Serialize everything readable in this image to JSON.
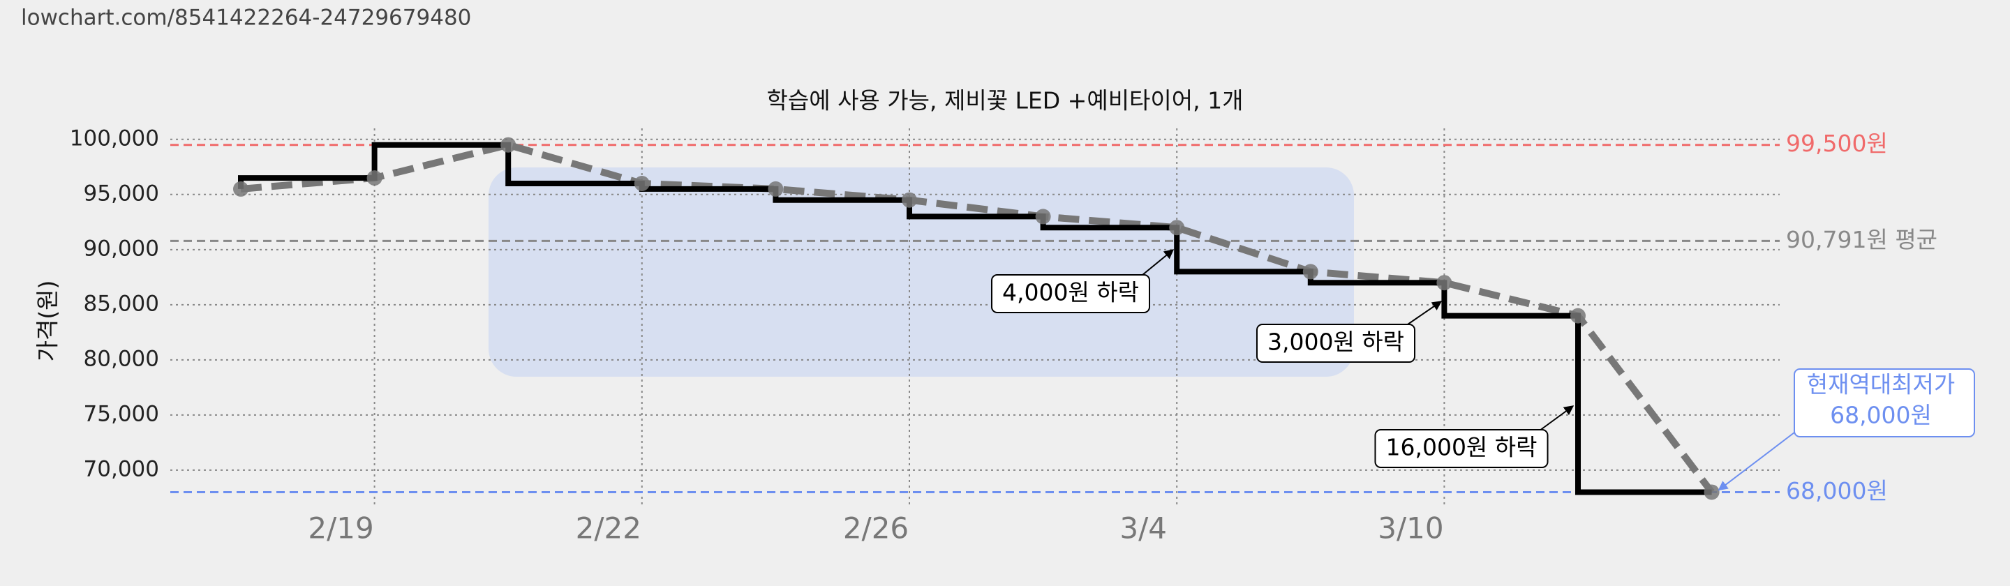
{
  "url": "lowchart.com/8541422264-24729679480",
  "chart_data": {
    "type": "line",
    "title": "학습에 사용 가능, 제비꽃 LED +예비타이어, 1개",
    "y_label": "가격(원)",
    "categories": [
      null,
      "2/19",
      null,
      "2/22",
      null,
      "2/26",
      null,
      "3/4",
      null,
      "3/10",
      null,
      null
    ],
    "values": [
      95500,
      96500,
      99500,
      96000,
      95500,
      94500,
      93000,
      92000,
      88000,
      87000,
      84000,
      68000
    ],
    "step_color": "#000000",
    "trend_color": "#777777",
    "ylim": [
      66700,
      101000
    ],
    "yticks": [
      {
        "value": 70000,
        "label": "70,000"
      },
      {
        "value": 75000,
        "label": "75,000"
      },
      {
        "value": 80000,
        "label": "80,000"
      },
      {
        "value": 85000,
        "label": "85,000"
      },
      {
        "value": 90000,
        "label": "90,000"
      },
      {
        "value": 95000,
        "label": "95,000"
      },
      {
        "value": 100000,
        "label": "100,000"
      }
    ],
    "grid": true,
    "reference_lines": [
      {
        "value": 99500,
        "label": "99,500원",
        "color": "#f06a6a"
      },
      {
        "value": 90791,
        "label": "90,791원 평균",
        "color": "#888888"
      },
      {
        "value": 68000,
        "label": "68,000원",
        "color": "#6d8ff0"
      }
    ],
    "annotations": [
      "4,000원 하락",
      "3,000원 하락",
      "16,000원 하락"
    ],
    "lowest_label": [
      "현재역대최저가",
      "68,000원"
    ]
  }
}
